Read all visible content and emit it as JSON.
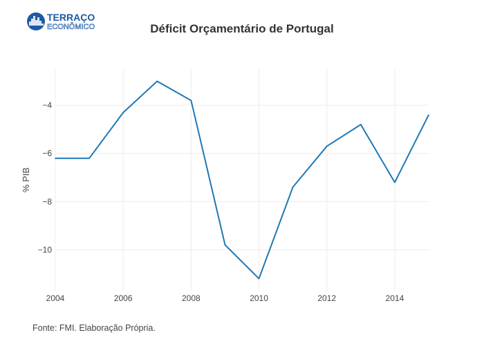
{
  "logo": {
    "line1": "TERRAÇO",
    "line2": "ECONÔMICO",
    "color": "#1b5aa6"
  },
  "chart_data": {
    "type": "line",
    "title": "Déficit Orçamentário de Portugal",
    "xlabel": "",
    "ylabel": "% PIB",
    "x": [
      2004,
      2005,
      2006,
      2007,
      2008,
      2009,
      2010,
      2011,
      2012,
      2013,
      2014,
      2015
    ],
    "series": [
      {
        "values": [
          -6.2,
          -6.2,
          -4.3,
          -3.0,
          -3.8,
          -9.8,
          -11.2,
          -7.4,
          -5.7,
          -4.8,
          -7.2,
          -4.4
        ],
        "color": "#1f77b4"
      }
    ],
    "xlim": [
      2004,
      2015
    ],
    "ylim": [
      -11.7,
      -2.5
    ],
    "xticks": [
      2004,
      2006,
      2008,
      2010,
      2012,
      2014
    ],
    "yticks": [
      -4,
      -6,
      -8,
      -10
    ],
    "grid": true
  },
  "source_note": "Fonte: FMI. Elaboração Própria."
}
